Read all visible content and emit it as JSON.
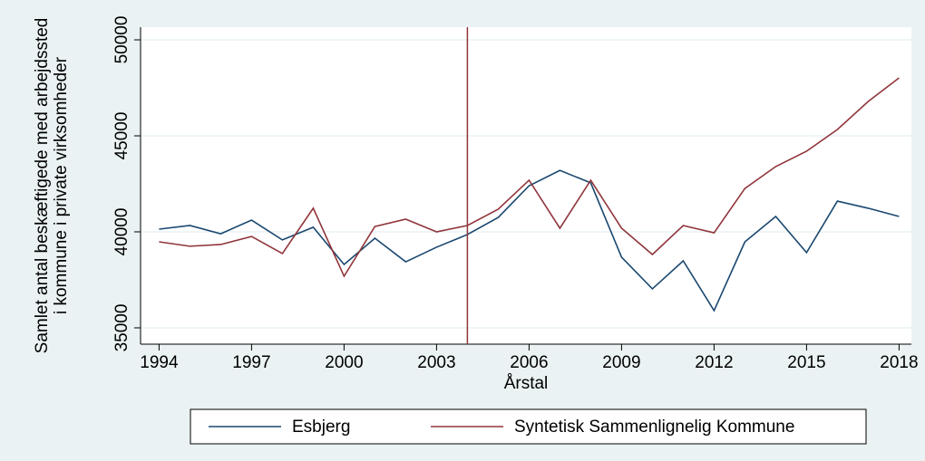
{
  "chart_data": {
    "type": "line",
    "ylabel": [
      "Samlet antal beskæftigede med arbejdssted",
      "i kommune i private virksomheder"
    ],
    "xlabel": "Årstal",
    "x": [
      1994,
      1995,
      1996,
      1997,
      1998,
      1999,
      2000,
      2001,
      2002,
      2003,
      2004,
      2005,
      2006,
      2007,
      2008,
      2009,
      2010,
      2011,
      2012,
      2013,
      2014,
      2015,
      2016,
      2017,
      2018
    ],
    "series": [
      {
        "name": "Esbjerg",
        "color": "#1a476f",
        "values": [
          40140,
          40330,
          39900,
          40610,
          39580,
          40240,
          38300,
          39670,
          38440,
          39200,
          39860,
          40750,
          42400,
          43200,
          42550,
          38680,
          37030,
          38490,
          35900,
          39480,
          40800,
          38920,
          41600,
          41230,
          40800
        ]
      },
      {
        "name": "Syntetisk Sammenlignelig Kommune",
        "color": "#90353b",
        "values": [
          39480,
          39250,
          39340,
          39760,
          38870,
          41230,
          37690,
          40280,
          40660,
          40000,
          40330,
          41180,
          42690,
          40190,
          42690,
          40190,
          38820,
          40330,
          39950,
          42260,
          43400,
          44200,
          45330,
          46790,
          48020
        ]
      }
    ],
    "xline": 2004,
    "xline_color": "#90353b",
    "xlim": [
      1993.4,
      2018.4
    ],
    "xticks": [
      1994,
      1997,
      2000,
      2003,
      2006,
      2009,
      2012,
      2015,
      2018
    ],
    "ylim": [
      34150,
      50660
    ],
    "yticks": [
      35000,
      40000,
      45000,
      50000
    ],
    "grid": true,
    "legend": "bottom"
  }
}
